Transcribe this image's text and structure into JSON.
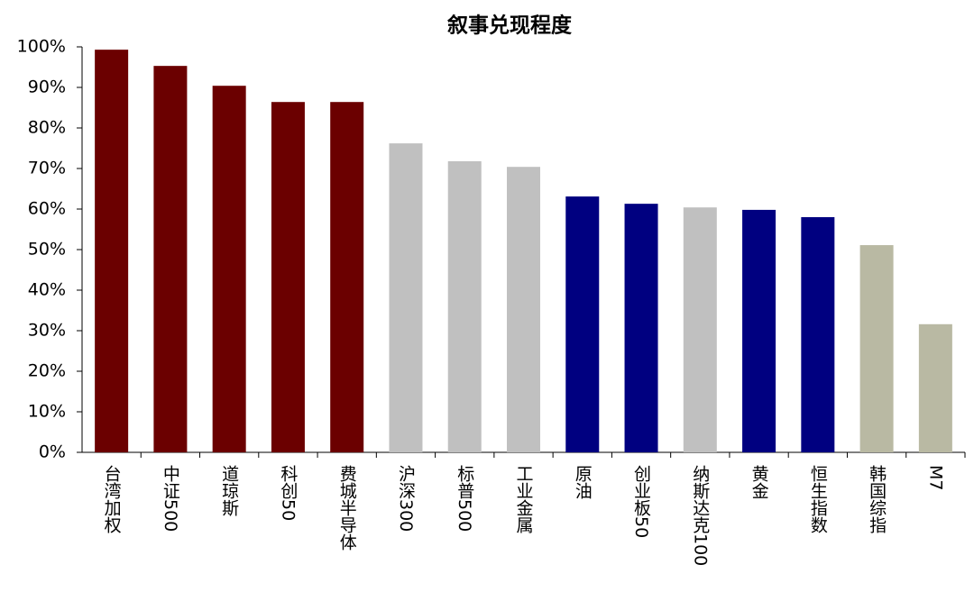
{
  "chart_data": {
    "type": "bar",
    "title": "叙事兑现程度",
    "categories": [
      "台湾加权",
      "中证500",
      "道琼斯",
      "科创50",
      "费城半导体",
      "沪深300",
      "标普500",
      "工业金属",
      "原油",
      "创业板50",
      "纳斯达克100",
      "黄金",
      "恒生指数",
      "韩国综指",
      "M7"
    ],
    "values": [
      99.3,
      95.3,
      90.4,
      86.4,
      86.4,
      76.2,
      71.8,
      70.4,
      63.1,
      61.3,
      60.4,
      59.8,
      58.0,
      51.1,
      31.6
    ],
    "colors": [
      "#6b0000",
      "#6b0000",
      "#6b0000",
      "#6b0000",
      "#6b0000",
      "#c0c0c0",
      "#c0c0c0",
      "#c0c0c0",
      "#000080",
      "#000080",
      "#c0c0c0",
      "#000080",
      "#000080",
      "#b9b9a3",
      "#b9b9a3"
    ],
    "ylim": [
      0,
      100
    ],
    "yticks": [
      {
        "value": 0,
        "label": "0%"
      },
      {
        "value": 10,
        "label": "10%"
      },
      {
        "value": 20,
        "label": "20%"
      },
      {
        "value": 30,
        "label": "30%"
      },
      {
        "value": 40,
        "label": "40%"
      },
      {
        "value": 50,
        "label": "50%"
      },
      {
        "value": 60,
        "label": "60%"
      },
      {
        "value": 70,
        "label": "70%"
      },
      {
        "value": 80,
        "label": "80%"
      },
      {
        "value": 90,
        "label": "90%"
      },
      {
        "value": 100,
        "label": "100%"
      }
    ],
    "grid": false
  }
}
